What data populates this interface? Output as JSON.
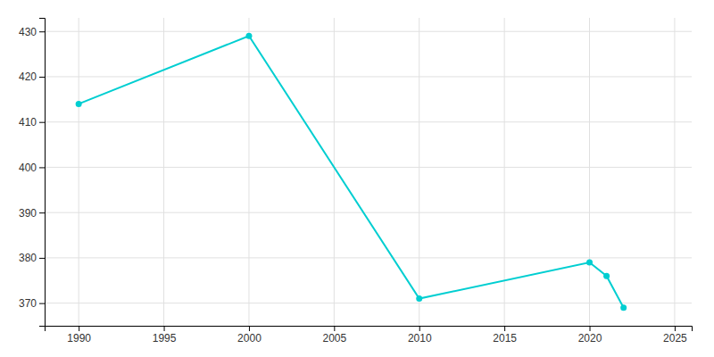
{
  "chart_data": {
    "type": "line",
    "x": [
      1990,
      2000,
      2010,
      2020,
      2021,
      2022
    ],
    "values": [
      414,
      429,
      371,
      379,
      376,
      369
    ],
    "color": "#00CED1",
    "marker": "circle",
    "xlim": [
      1988,
      2026
    ],
    "ylim": [
      365,
      433
    ],
    "xticks": [
      1990,
      1995,
      2000,
      2005,
      2010,
      2015,
      2020,
      2025
    ],
    "yticks": [
      370,
      380,
      390,
      400,
      410,
      420,
      430
    ],
    "grid": true
  }
}
